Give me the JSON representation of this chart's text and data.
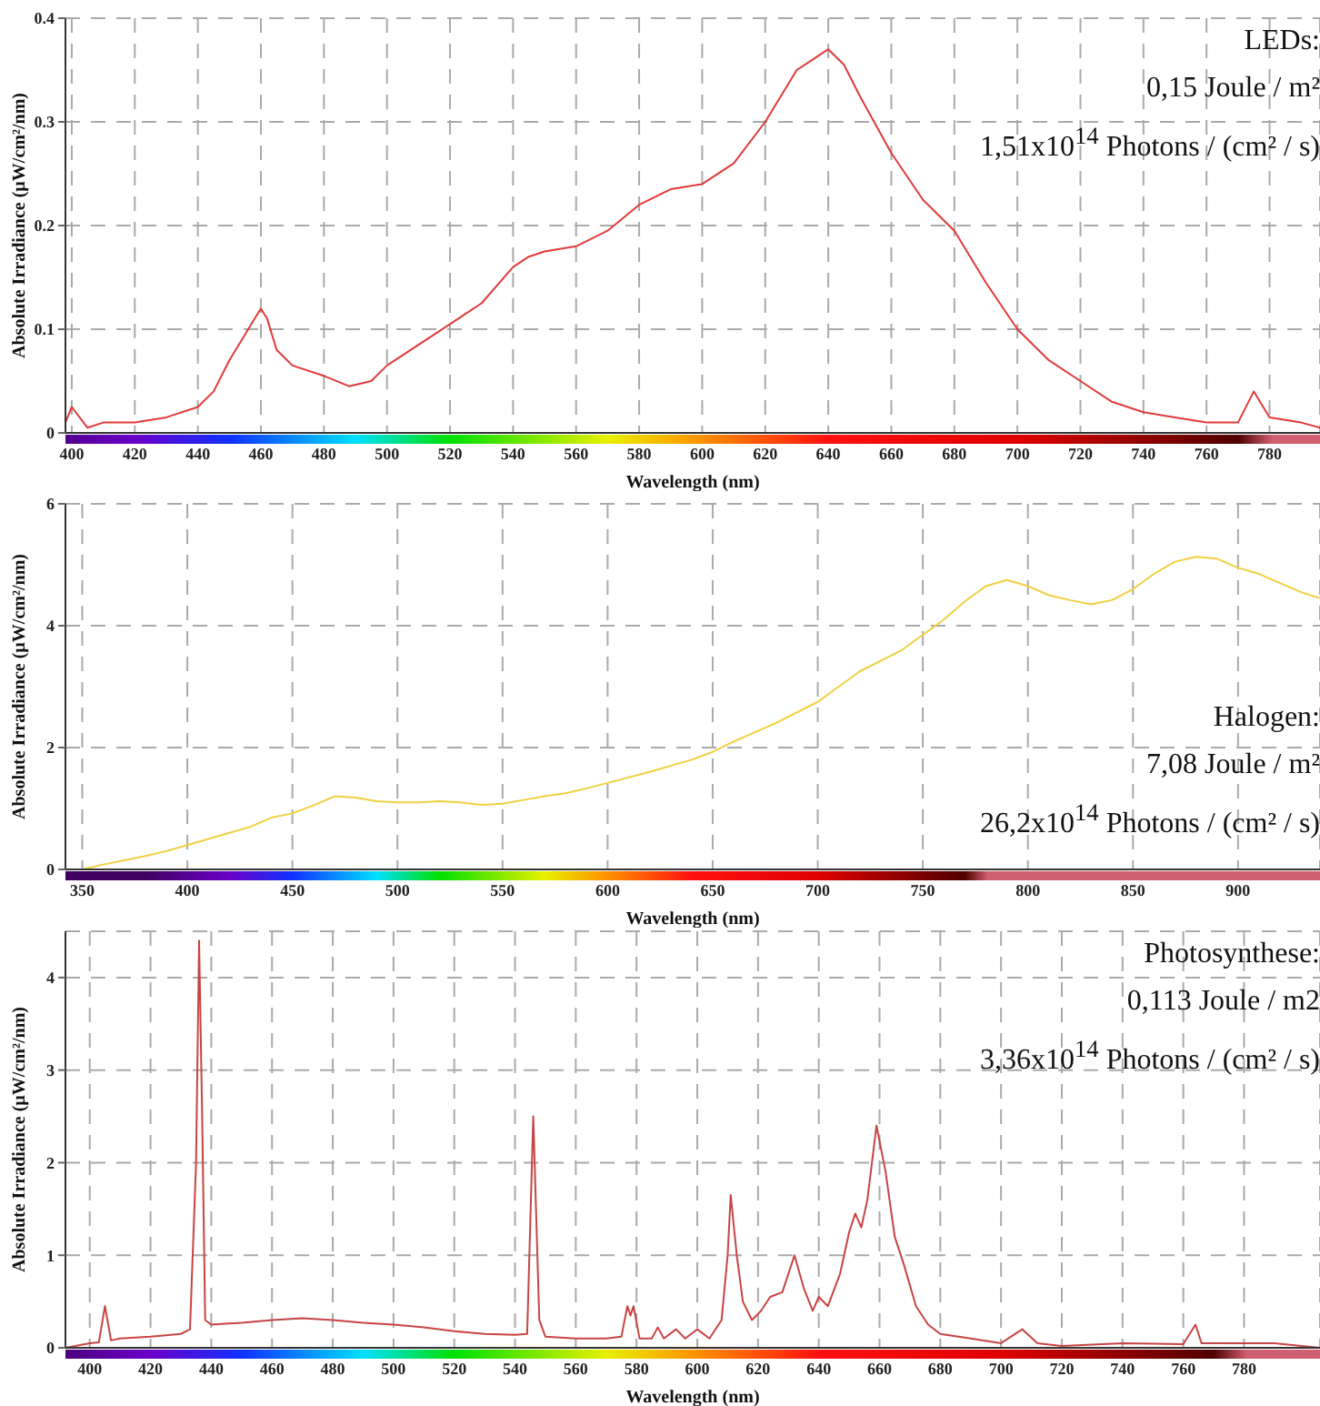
{
  "chart_data": [
    {
      "type": "line",
      "xlabel": "Wavelength (nm)",
      "ylabel": "Absolute Irradiance (µW/cm²/nm)",
      "annotations": [
        "LEDs:",
        "0,15 Joule / m²",
        "1,51x10$^{14}$ Photons / (cm² / s)"
      ],
      "grid": true,
      "marker": "none",
      "xlim": [
        398,
        796
      ],
      "xticks": [
        400,
        420,
        440,
        460,
        480,
        500,
        520,
        540,
        560,
        580,
        600,
        620,
        640,
        660,
        680,
        700,
        720,
        740,
        760,
        780
      ],
      "ylim": [
        0,
        0.4
      ],
      "yticks": [
        0,
        0.1,
        0.2,
        0.3,
        0.4
      ],
      "x": [
        398,
        400,
        405,
        410,
        420,
        430,
        440,
        445,
        450,
        455,
        458,
        460,
        462,
        465,
        470,
        480,
        488,
        495,
        500,
        510,
        520,
        530,
        540,
        545,
        550,
        560,
        570,
        580,
        590,
        600,
        610,
        620,
        630,
        635,
        640,
        645,
        650,
        660,
        670,
        680,
        690,
        700,
        710,
        720,
        730,
        740,
        750,
        760,
        770,
        775,
        780,
        790,
        796
      ],
      "series": [
        {
          "color": "#e03a3a",
          "values": [
            0.01,
            0.025,
            0.005,
            0.01,
            0.01,
            0.015,
            0.025,
            0.04,
            0.07,
            0.095,
            0.11,
            0.12,
            0.11,
            0.08,
            0.065,
            0.055,
            0.045,
            0.05,
            0.065,
            0.085,
            0.105,
            0.125,
            0.16,
            0.17,
            0.175,
            0.18,
            0.195,
            0.22,
            0.235,
            0.24,
            0.26,
            0.3,
            0.35,
            0.36,
            0.37,
            0.355,
            0.325,
            0.27,
            0.225,
            0.195,
            0.145,
            0.1,
            0.07,
            0.05,
            0.03,
            0.02,
            0.015,
            0.01,
            0.01,
            0.04,
            0.015,
            0.01,
            0.005
          ]
        }
      ]
    },
    {
      "type": "line",
      "xlabel": "Wavelength (nm)",
      "ylabel": "Absolute Irradiance (µW/cm²/nm)",
      "annotations": [
        "Halogen:",
        "7,08 Joule / m²",
        "26,2x10$^{14}$ Photons / (cm² / s)"
      ],
      "grid": true,
      "marker": "none",
      "xlim": [
        342,
        939
      ],
      "xticks": [
        350,
        400,
        450,
        500,
        550,
        600,
        650,
        700,
        750,
        800,
        850,
        900
      ],
      "ylim": [
        0,
        6
      ],
      "yticks": [
        0,
        2,
        4,
        6
      ],
      "x": [
        342,
        350,
        360,
        370,
        380,
        390,
        400,
        410,
        420,
        430,
        440,
        450,
        460,
        470,
        480,
        490,
        500,
        510,
        520,
        530,
        540,
        550,
        560,
        570,
        580,
        590,
        600,
        620,
        640,
        650,
        660,
        680,
        700,
        710,
        720,
        740,
        750,
        760,
        770,
        780,
        790,
        800,
        810,
        820,
        830,
        840,
        850,
        860,
        870,
        880,
        890,
        900,
        910,
        920,
        930,
        939
      ],
      "series": [
        {
          "color": "#f0d040",
          "values": [
            0,
            0,
            0.08,
            0.15,
            0.22,
            0.3,
            0.4,
            0.5,
            0.6,
            0.7,
            0.85,
            0.92,
            1.05,
            1.2,
            1.18,
            1.12,
            1.1,
            1.1,
            1.12,
            1.1,
            1.06,
            1.08,
            1.14,
            1.2,
            1.25,
            1.33,
            1.42,
            1.6,
            1.8,
            1.93,
            2.1,
            2.4,
            2.75,
            3,
            3.25,
            3.6,
            3.85,
            4.1,
            4.4,
            4.65,
            4.75,
            4.65,
            4.5,
            4.42,
            4.35,
            4.42,
            4.6,
            4.85,
            5.05,
            5.13,
            5.1,
            4.95,
            4.85,
            4.7,
            4.55,
            4.45
          ]
        }
      ]
    },
    {
      "type": "line",
      "xlabel": "Wavelength (nm)",
      "ylabel": "Absolute Irradiance (µW/cm²/nm)",
      "annotations": [
        "Photosynthese:",
        "0,113 Joule / m2",
        "3,36x10$^{14}$ Photons / (cm² / s)"
      ],
      "grid": true,
      "marker": "none",
      "xlim": [
        392,
        805
      ],
      "xticks": [
        400,
        420,
        440,
        460,
        480,
        500,
        520,
        540,
        560,
        580,
        600,
        620,
        640,
        660,
        680,
        700,
        720,
        740,
        760,
        780
      ],
      "ylim": [
        0,
        4.5
      ],
      "yticks": [
        0,
        1,
        2,
        3,
        4
      ],
      "x": [
        392,
        400,
        403,
        405,
        407,
        410,
        420,
        430,
        433,
        435,
        436,
        437,
        438,
        440,
        450,
        460,
        470,
        480,
        490,
        500,
        510,
        520,
        530,
        540,
        544,
        546,
        548,
        550,
        560,
        570,
        575,
        577,
        578,
        579,
        581,
        585,
        587,
        589,
        593,
        596,
        600,
        604,
        608,
        610,
        611,
        613,
        615,
        618,
        621,
        624,
        628,
        632,
        635,
        638,
        640,
        643,
        647,
        650,
        652,
        654,
        656,
        659,
        662,
        665,
        668,
        672,
        676,
        680,
        690,
        700,
        707,
        712,
        720,
        740,
        760,
        764,
        766,
        780,
        790,
        805
      ],
      "series": [
        {
          "color": "#c84444",
          "values": [
            0,
            0.05,
            0.06,
            0.45,
            0.08,
            0.1,
            0.12,
            0.15,
            0.2,
            2,
            4.4,
            2.5,
            0.3,
            0.25,
            0.27,
            0.3,
            0.32,
            0.3,
            0.27,
            0.25,
            0.22,
            0.18,
            0.15,
            0.14,
            0.15,
            2.5,
            0.3,
            0.12,
            0.1,
            0.1,
            0.12,
            0.45,
            0.35,
            0.45,
            0.1,
            0.1,
            0.22,
            0.1,
            0.2,
            0.1,
            0.2,
            0.1,
            0.3,
            1,
            1.65,
            1,
            0.5,
            0.3,
            0.4,
            0.55,
            0.6,
            1,
            0.65,
            0.4,
            0.55,
            0.45,
            0.8,
            1.25,
            1.45,
            1.3,
            1.6,
            2.4,
            1.9,
            1.2,
            0.9,
            0.45,
            0.25,
            0.15,
            0.1,
            0.05,
            0.2,
            0.05,
            0.02,
            0.05,
            0.04,
            0.25,
            0.05,
            0.05,
            0.05,
            0
          ]
        }
      ]
    }
  ]
}
